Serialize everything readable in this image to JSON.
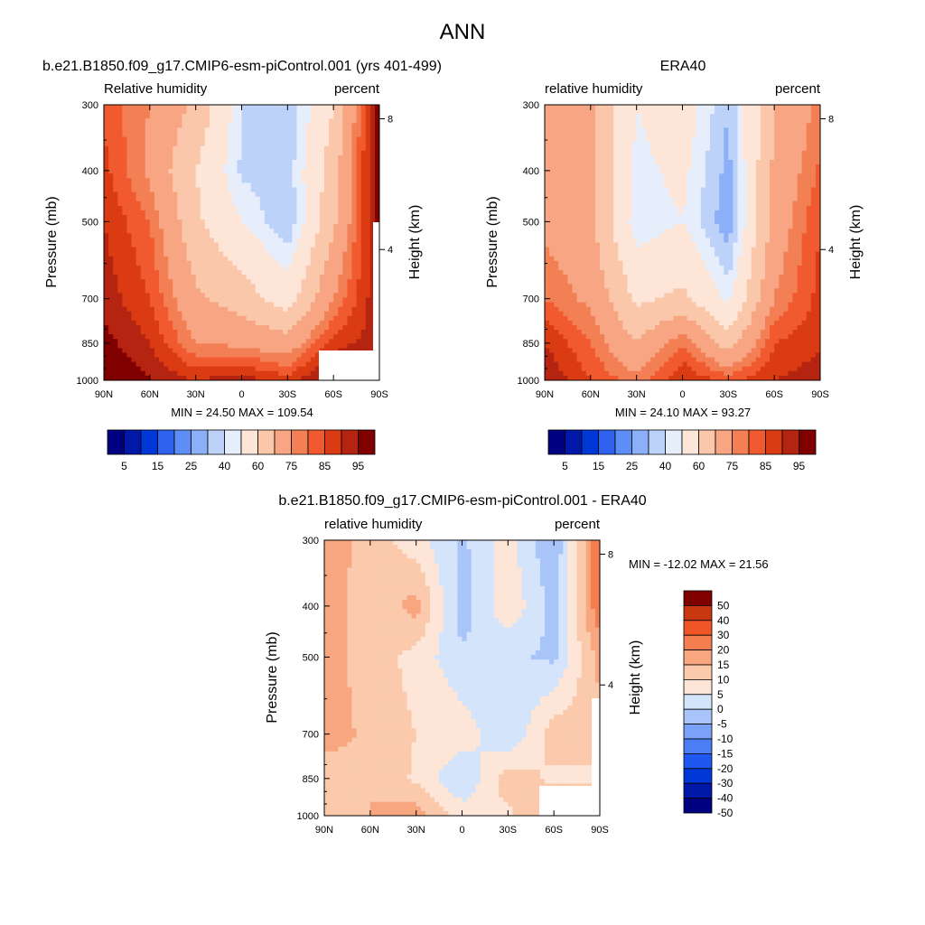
{
  "figure_title": "ANN",
  "colors": {
    "abs_scale": [
      "#000080",
      "#0018a8",
      "#0038d8",
      "#2e62ee",
      "#5d8ef5",
      "#8cb0f7",
      "#bcd2f8",
      "#e6eefb",
      "#fde6d8",
      "#fbc7aa",
      "#f7a582",
      "#f37f55",
      "#f05a2e",
      "#db3b12",
      "#b42410",
      "#800000"
    ],
    "diff_scale": [
      "#000080",
      "#0018a8",
      "#0038d8",
      "#1f58f0",
      "#4b7ef5",
      "#7aa2f8",
      "#a8c4f9",
      "#d3e4fb",
      "#fde6d8",
      "#fbc9ab",
      "#f8a67f",
      "#f57e50",
      "#ef5527",
      "#c83710",
      "#800000"
    ]
  },
  "chart_data": [
    {
      "type": "heatmap",
      "title": "b.e21.B1850.f09_g17.CMIP6-esm-piControl.001 (yrs 401-499)",
      "left_label": "Relative humidity",
      "right_label": "percent",
      "ylabel": "Pressure (mb)",
      "ylabel_right": "Height (km)",
      "x_ticks": [
        "90N",
        "60N",
        "30N",
        "0",
        "30S",
        "60S",
        "90S"
      ],
      "y_ticks": [
        "300",
        "400",
        "500",
        "700",
        "850",
        "1000"
      ],
      "y_ticks_right": [
        "8",
        "4"
      ],
      "stats": "MIN =  24.50  MAX = 109.54",
      "colorbar_labels": [
        "5",
        "15",
        "25",
        "40",
        "60",
        "75",
        "85",
        "95"
      ],
      "levels": [
        5,
        10,
        15,
        20,
        25,
        30,
        35,
        40,
        50,
        60,
        70,
        75,
        80,
        85,
        90,
        95
      ],
      "x": [
        90,
        60,
        30,
        0,
        -30,
        -60,
        -90
      ],
      "y": [
        300,
        400,
        500,
        700,
        850,
        1000
      ],
      "z": [
        [
          78,
          70,
          58,
          35,
          30,
          50,
          92
        ],
        [
          82,
          68,
          50,
          34,
          32,
          55,
          95
        ],
        [
          85,
          75,
          52,
          40,
          30,
          58,
          92
        ],
        [
          88,
          80,
          62,
          55,
          45,
          70,
          90
        ],
        [
          92,
          85,
          70,
          68,
          64,
          82,
          88
        ],
        [
          98,
          90,
          85,
          88,
          82,
          95,
          100
        ]
      ],
      "min": 24.5,
      "max": 109.54
    },
    {
      "type": "heatmap",
      "title": "ERA40",
      "left_label": "relative humidity",
      "right_label": "percent",
      "ylabel": "Pressure (mb)",
      "ylabel_right": "Height (km)",
      "x_ticks": [
        "90N",
        "60N",
        "30N",
        "0",
        "30S",
        "60S",
        "90S"
      ],
      "y_ticks": [
        "300",
        "400",
        "500",
        "700",
        "850",
        "1000"
      ],
      "y_ticks_right": [
        "8",
        "4"
      ],
      "stats": "MIN =  24.10  MAX =  93.27",
      "colorbar_labels": [
        "5",
        "15",
        "25",
        "40",
        "60",
        "75",
        "85",
        "95"
      ],
      "levels": [
        5,
        10,
        15,
        20,
        25,
        30,
        35,
        40,
        50,
        60,
        70,
        75,
        80,
        85,
        90,
        95
      ],
      "x": [
        90,
        60,
        30,
        0,
        -30,
        -60,
        -90
      ],
      "y": [
        300,
        400,
        500,
        700,
        850,
        1000
      ],
      "z": [
        [
          65,
          62,
          40,
          45,
          30,
          60,
          72
        ],
        [
          68,
          62,
          38,
          42,
          28,
          62,
          76
        ],
        [
          68,
          62,
          36,
          40,
          26,
          64,
          80
        ],
        [
          75,
          68,
          48,
          52,
          38,
          70,
          82
        ],
        [
          85,
          75,
          60,
          75,
          55,
          80,
          84
        ],
        [
          90,
          80,
          72,
          85,
          78,
          85,
          88
        ]
      ],
      "min": 24.1,
      "max": 93.27
    },
    {
      "type": "heatmap",
      "title": "b.e21.B1850.f09_g17.CMIP6-esm-piControl.001 - ERA40",
      "left_label": "relative humidity",
      "right_label": "percent",
      "ylabel": "Pressure (mb)",
      "ylabel_right": "Height (km)",
      "x_ticks": [
        "90N",
        "60N",
        "30N",
        "0",
        "30S",
        "60S",
        "90S"
      ],
      "y_ticks": [
        "300",
        "400",
        "500",
        "700",
        "850",
        "1000"
      ],
      "y_ticks_right": [
        "8",
        "4"
      ],
      "stats": "MIN = -12.02  MAX =  21.56",
      "colorbar_labels": [
        "50",
        "40",
        "30",
        "20",
        "15",
        "10",
        "5",
        "0",
        "-5",
        "-10",
        "-15",
        "-20",
        "-30",
        "-40",
        "-50"
      ],
      "levels": [
        -50,
        -40,
        -30,
        -20,
        -15,
        -10,
        -5,
        0,
        5,
        10,
        15,
        20,
        30,
        40,
        50
      ],
      "x": [
        90,
        60,
        30,
        0,
        -30,
        -60,
        -90
      ],
      "y": [
        300,
        400,
        500,
        700,
        850,
        1000
      ],
      "z": [
        [
          13,
          8,
          2,
          -6,
          2,
          -10,
          20
        ],
        [
          14,
          6,
          12,
          -8,
          4,
          -7,
          19
        ],
        [
          12,
          8,
          3,
          -4,
          -4,
          -6,
          12
        ],
        [
          12,
          9,
          5,
          3,
          -5,
          8,
          8
        ],
        [
          7,
          10,
          4,
          -5,
          8,
          4,
          4
        ],
        [
          8,
          10,
          13,
          3,
          4,
          10,
          12
        ]
      ],
      "min": -12.02,
      "max": 21.56
    }
  ]
}
